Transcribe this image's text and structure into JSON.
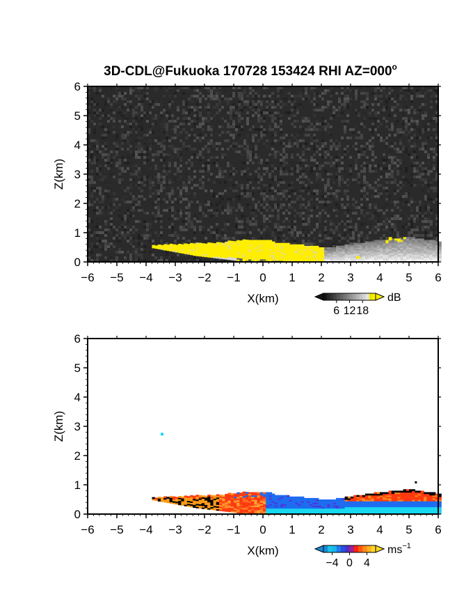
{
  "figure": {
    "title": "3D-CDL@Fukuoka 170728 153424 RHI AZ=000",
    "title_superscript": "o"
  },
  "chart_data": [
    {
      "type": "heatmap",
      "panel": "reflectivity",
      "xlabel": "X(km)",
      "ylabel": "Z(km)",
      "xlim": [
        -6,
        6
      ],
      "ylim": [
        0,
        6
      ],
      "xticks": [
        "-6",
        "-5",
        "-4",
        "-3",
        "-2",
        "-1",
        "0",
        "1",
        "2",
        "3",
        "4",
        "5",
        "6"
      ],
      "yticks": [
        "0",
        "1",
        "2",
        "3",
        "4",
        "5",
        "6"
      ],
      "colorbar": {
        "unit": "dB",
        "ticks": [
          "6",
          "12",
          "18"
        ],
        "ticks_values": [
          6,
          12,
          18
        ],
        "range": [
          0,
          24
        ]
      },
      "background": "noise (grayscale)",
      "colors": {
        "high": "#ffee00",
        "clutter": "#d8d8d8",
        "noise": "#2a2a2a"
      }
    },
    {
      "type": "heatmap",
      "panel": "doppler velocity",
      "xlabel": "X(km)",
      "ylabel": "Z(km)",
      "xlim": [
        -6,
        6
      ],
      "ylim": [
        0,
        6
      ],
      "xticks": [
        "-6",
        "-5",
        "-4",
        "-3",
        "-2",
        "-1",
        "0",
        "1",
        "2",
        "3",
        "4",
        "5",
        "6"
      ],
      "yticks": [
        "0",
        "1",
        "2",
        "3",
        "4",
        "5",
        "6"
      ],
      "colorbar": {
        "unit": "ms",
        "unit_exponent": "−1",
        "ticks": [
          "−4",
          "0",
          "4"
        ],
        "ticks_values": [
          -4,
          0,
          4
        ],
        "range": [
          -6,
          6
        ]
      },
      "colors": {
        "negative": "#1e6cf0",
        "near_zero_neg": "#19d7f0",
        "positive": "#ff3a10",
        "high_positive": "#ffd020"
      }
    }
  ]
}
